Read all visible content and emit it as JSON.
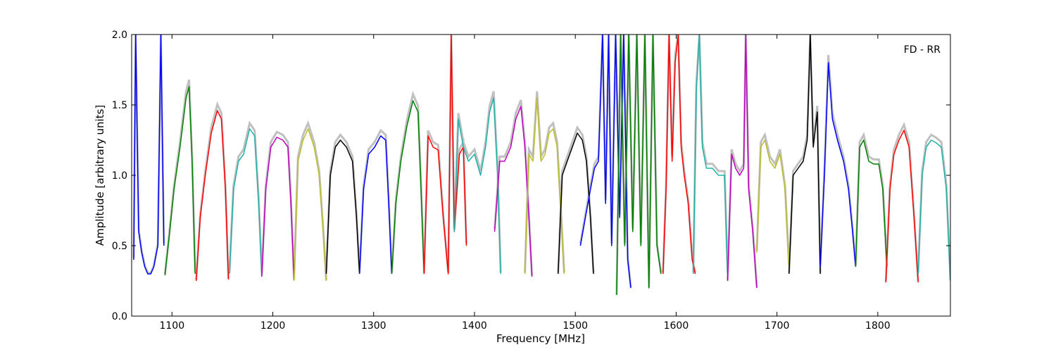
{
  "chart_data": {
    "type": "line",
    "title": "",
    "annotation": "FD - RR",
    "xlabel": "Frequency [MHz]",
    "ylabel": "Amplitude [arbitrary units]",
    "xlim": [
      1060,
      1872
    ],
    "ylim": [
      0.0,
      2.0
    ],
    "xticks": [
      1100,
      1200,
      1300,
      1400,
      1500,
      1600,
      1700,
      1800
    ],
    "yticks": [
      0.0,
      0.5,
      1.0,
      1.5,
      2.0
    ],
    "xtick_labels": [
      "1100",
      "1200",
      "1300",
      "1400",
      "1500",
      "1600",
      "1700",
      "1800"
    ],
    "ytick_labels": [
      "0.0",
      "0.5",
      "1.0",
      "1.5",
      "2.0"
    ],
    "grid": false,
    "background_series_color": "#c0c0c0",
    "band_colors": [
      "#0000ff",
      "#008000",
      "#ff0000",
      "#20b2aa",
      "#bf00bf",
      "#bdbd28",
      "#000000"
    ],
    "bands": [
      {
        "color": "#0000ff",
        "x": [
          1062,
          1064,
          1067,
          1070,
          1073,
          1076,
          1079,
          1082,
          1086,
          1089,
          1092
        ],
        "y": [
          0.4,
          2.0,
          0.6,
          0.45,
          0.35,
          0.3,
          0.3,
          0.35,
          0.5,
          2.0,
          0.5
        ]
      },
      {
        "color": "#008000",
        "x": [
          1093,
          1097,
          1102,
          1108,
          1114,
          1117,
          1120,
          1123
        ],
        "y": [
          0.29,
          0.55,
          0.9,
          1.2,
          1.55,
          1.63,
          1.1,
          0.3
        ]
      },
      {
        "color": "#ff0000",
        "x": [
          1124,
          1128,
          1133,
          1139,
          1145,
          1149,
          1153,
          1156
        ],
        "y": [
          0.25,
          0.7,
          1.0,
          1.3,
          1.46,
          1.4,
          0.9,
          0.26
        ]
      },
      {
        "color": "#20b2aa",
        "x": [
          1157,
          1161,
          1166,
          1171,
          1177,
          1182,
          1186,
          1189
        ],
        "y": [
          0.3,
          0.9,
          1.1,
          1.15,
          1.33,
          1.28,
          0.8,
          0.3
        ]
      },
      {
        "color": "#bf00bf",
        "x": [
          1189,
          1193,
          1198,
          1204,
          1210,
          1215,
          1218,
          1221
        ],
        "y": [
          0.28,
          0.9,
          1.2,
          1.27,
          1.25,
          1.2,
          0.8,
          0.26
        ]
      },
      {
        "color": "#bdbd28",
        "x": [
          1221,
          1225,
          1230,
          1235,
          1241,
          1246,
          1250,
          1253
        ],
        "y": [
          0.25,
          1.1,
          1.25,
          1.33,
          1.2,
          1.0,
          0.6,
          0.25
        ]
      },
      {
        "color": "#000000",
        "x": [
          1253,
          1257,
          1262,
          1267,
          1273,
          1279,
          1283,
          1286
        ],
        "y": [
          0.3,
          1.0,
          1.2,
          1.25,
          1.2,
          1.1,
          0.7,
          0.3
        ]
      },
      {
        "color": "#0000ff",
        "x": [
          1286,
          1290,
          1295,
          1301,
          1307,
          1312,
          1315,
          1318
        ],
        "y": [
          0.3,
          0.9,
          1.15,
          1.2,
          1.28,
          1.25,
          0.8,
          0.3
        ]
      },
      {
        "color": "#008000",
        "x": [
          1318,
          1322,
          1327,
          1333,
          1339,
          1344,
          1347,
          1350
        ],
        "y": [
          0.3,
          0.8,
          1.1,
          1.35,
          1.53,
          1.45,
          0.9,
          0.3
        ]
      },
      {
        "color": "#ff0000",
        "x": [
          1350,
          1354,
          1359,
          1364,
          1369,
          1374,
          1377,
          1380,
          1385,
          1389,
          1392
        ],
        "y": [
          0.3,
          1.28,
          1.2,
          1.18,
          0.7,
          0.3,
          2.0,
          0.6,
          1.15,
          1.2,
          0.5
        ]
      },
      {
        "color": "#20b2aa",
        "x": [
          1380,
          1384,
          1389,
          1394,
          1400,
          1406,
          1411,
          1415,
          1419,
          1423,
          1426
        ],
        "y": [
          0.6,
          1.4,
          1.2,
          1.1,
          1.15,
          1.0,
          1.2,
          1.45,
          1.55,
          1.0,
          0.3
        ]
      },
      {
        "color": "#bf00bf",
        "x": [
          1420,
          1425,
          1430,
          1436,
          1441,
          1446,
          1450,
          1454,
          1457
        ],
        "y": [
          0.6,
          1.1,
          1.1,
          1.2,
          1.4,
          1.49,
          1.2,
          0.7,
          0.28
        ]
      },
      {
        "color": "#bdbd28",
        "x": [
          1450,
          1454,
          1458,
          1462,
          1466,
          1470,
          1474,
          1478,
          1482,
          1486,
          1489
        ],
        "y": [
          0.3,
          1.15,
          1.1,
          1.55,
          1.1,
          1.15,
          1.3,
          1.33,
          1.2,
          0.7,
          0.3
        ]
      },
      {
        "color": "#000000",
        "x": [
          1483,
          1487,
          1492,
          1497,
          1502,
          1507,
          1511,
          1515,
          1518
        ],
        "y": [
          0.3,
          1.0,
          1.1,
          1.2,
          1.3,
          1.25,
          1.1,
          0.7,
          0.3
        ]
      },
      {
        "color": "#0000ff",
        "x": [
          1505,
          1510,
          1515,
          1519,
          1523,
          1527,
          1530,
          1533,
          1536,
          1540,
          1544,
          1548,
          1552,
          1555
        ],
        "y": [
          0.5,
          0.7,
          0.9,
          1.05,
          1.1,
          2.0,
          0.8,
          2.0,
          0.5,
          2.0,
          0.7,
          2.0,
          0.4,
          0.2
        ]
      },
      {
        "color": "#008000",
        "x": [
          1541,
          1545,
          1549,
          1553,
          1557,
          1561,
          1565,
          1569,
          1573,
          1577,
          1581,
          1585
        ],
        "y": [
          0.15,
          2.0,
          0.5,
          2.0,
          0.6,
          2.0,
          0.5,
          2.0,
          0.2,
          2.0,
          0.5,
          0.3
        ]
      },
      {
        "color": "#ff0000",
        "x": [
          1587,
          1590,
          1593,
          1596,
          1599,
          1602,
          1605,
          1608,
          1612,
          1616,
          1619
        ],
        "y": [
          0.3,
          0.9,
          2.0,
          1.1,
          1.8,
          2.0,
          1.2,
          1.0,
          0.8,
          0.4,
          0.3
        ]
      },
      {
        "color": "#20b2aa",
        "x": [
          1617,
          1620,
          1623,
          1626,
          1630,
          1636,
          1642,
          1648,
          1651
        ],
        "y": [
          0.3,
          1.6,
          2.0,
          1.2,
          1.05,
          1.05,
          1.0,
          1.0,
          0.3
        ]
      },
      {
        "color": "#bf00bf",
        "x": [
          1651,
          1655,
          1659,
          1663,
          1667,
          1669,
          1672,
          1676,
          1680
        ],
        "y": [
          0.25,
          1.15,
          1.05,
          1.0,
          1.05,
          2.0,
          0.9,
          0.6,
          0.2
        ]
      },
      {
        "color": "#bdbd28",
        "x": [
          1680,
          1684,
          1688,
          1693,
          1698,
          1703,
          1708,
          1712
        ],
        "y": [
          0.45,
          1.2,
          1.25,
          1.1,
          1.05,
          1.15,
          0.9,
          0.35
        ]
      },
      {
        "color": "#000000",
        "x": [
          1712,
          1716,
          1721,
          1726,
          1730,
          1733,
          1736,
          1740,
          1743
        ],
        "y": [
          0.3,
          1.0,
          1.05,
          1.1,
          1.25,
          2.0,
          1.2,
          1.45,
          0.3
        ]
      },
      {
        "color": "#0000ff",
        "x": [
          1743,
          1747,
          1751,
          1755,
          1760,
          1766,
          1771,
          1775,
          1778
        ],
        "y": [
          0.35,
          1.0,
          1.8,
          1.4,
          1.25,
          1.1,
          0.9,
          0.6,
          0.35
        ]
      },
      {
        "color": "#008000",
        "x": [
          1778,
          1782,
          1786,
          1791,
          1796,
          1801,
          1805,
          1809
        ],
        "y": [
          0.35,
          1.2,
          1.25,
          1.1,
          1.08,
          1.08,
          0.9,
          0.35
        ]
      },
      {
        "color": "#ff0000",
        "x": [
          1808,
          1812,
          1816,
          1821,
          1826,
          1831,
          1836,
          1840
        ],
        "y": [
          0.24,
          0.9,
          1.15,
          1.25,
          1.32,
          1.2,
          0.7,
          0.24
        ]
      },
      {
        "color": "#20b2aa",
        "x": [
          1840,
          1844,
          1848,
          1853,
          1858,
          1863,
          1868,
          1872
        ],
        "y": [
          0.3,
          1.0,
          1.2,
          1.25,
          1.23,
          1.2,
          0.9,
          0.25
        ]
      }
    ]
  }
}
